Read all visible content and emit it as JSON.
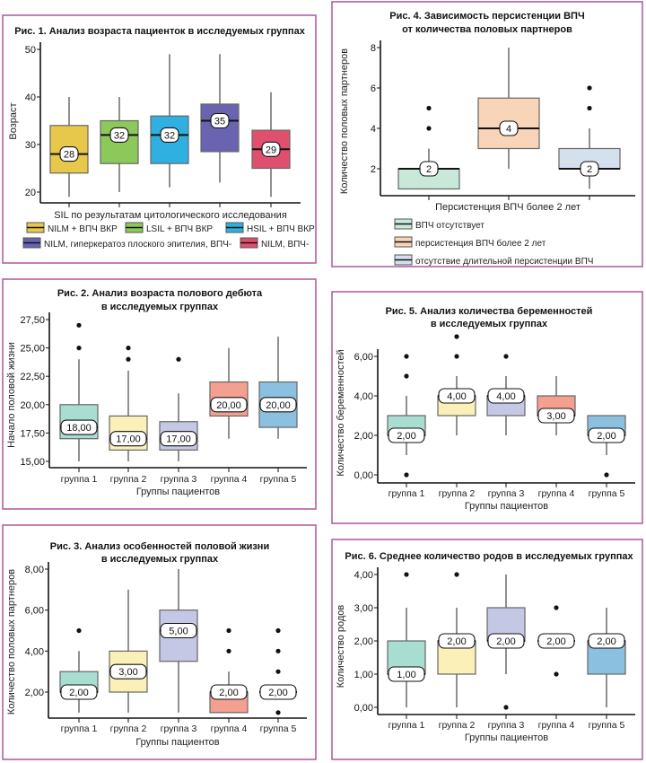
{
  "panel_border_color": "#b060a8",
  "chart_data": [
    {
      "type": "boxplot",
      "title": [
        "Рис. 1. Анализ возраста пациенток в исследуемых группах"
      ],
      "xlabel": "SIL по результатам цитологического исследования",
      "ylabel": "Возраст",
      "yticks": [
        20,
        30,
        40,
        50
      ],
      "ytick_labels": [
        "20",
        "30",
        "40",
        "50"
      ],
      "categories": [],
      "legend": [
        "NILM + ВПЧ ВКР",
        "LSIL + ВПЧ ВКР",
        "HSIL + ВПЧ ВКР",
        "NILM, гиперкератоз плоского эпителия, ВПЧ-",
        "NILM, ВПЧ-"
      ],
      "boxes": [
        {
          "low": 19,
          "q1": 24,
          "median": 28,
          "q3": 34,
          "high": 40,
          "outliers": [],
          "median_label": "28",
          "color": "#e8c84a"
        },
        {
          "low": 20,
          "q1": 26,
          "median": 32,
          "q3": 35,
          "high": 40,
          "outliers": [],
          "median_label": "32",
          "color": "#8cc95a"
        },
        {
          "low": 21,
          "q1": 26,
          "median": 32,
          "q3": 36,
          "high": 49,
          "outliers": [],
          "median_label": "32",
          "color": "#2fb0e0"
        },
        {
          "low": 22,
          "q1": 28.5,
          "median": 35,
          "q3": 38.5,
          "high": 49,
          "outliers": [],
          "median_label": "35",
          "color": "#6a64b0"
        },
        {
          "low": 19,
          "q1": 25,
          "median": 29,
          "q3": 33,
          "high": 41,
          "outliers": [],
          "median_label": "29",
          "color": "#e0506e"
        }
      ]
    },
    {
      "type": "boxplot",
      "title": [
        "Рис. 2. Анализ возраста полового дебюта",
        "в исследуемых группах"
      ],
      "xlabel": "Группы пациентов",
      "ylabel": "Начало половой жизни",
      "yticks": [
        15,
        17.5,
        20,
        22.5,
        25,
        27.5
      ],
      "ytick_labels": [
        "15,00",
        "17,50",
        "20,00",
        "22,50",
        "25,00",
        "27,50"
      ],
      "categories": [
        "группа 1",
        "группа 2",
        "группа 3",
        "группа 4",
        "группа 5"
      ],
      "legend": [],
      "boxes": [
        {
          "low": 15,
          "q1": 17,
          "median": 18,
          "q3": 20,
          "high": 24,
          "outliers": [
            25,
            27
          ],
          "median_label": "18,00",
          "color": "#a8ddd2"
        },
        {
          "low": 15,
          "q1": 16,
          "median": 17,
          "q3": 19,
          "high": 23,
          "outliers": [
            24,
            25
          ],
          "median_label": "17,00",
          "color": "#fbf0b8"
        },
        {
          "low": 15,
          "q1": 16,
          "median": 17,
          "q3": 18.5,
          "high": 21,
          "outliers": [
            24
          ],
          "median_label": "17,00",
          "color": "#c4c8e4"
        },
        {
          "low": 17,
          "q1": 19,
          "median": 20,
          "q3": 22,
          "high": 25,
          "outliers": [],
          "median_label": "20,00",
          "color": "#f4a090"
        },
        {
          "low": 17,
          "q1": 18,
          "median": 20,
          "q3": 22,
          "high": 26,
          "outliers": [],
          "median_label": "20,00",
          "color": "#8cc0e0"
        }
      ]
    },
    {
      "type": "boxplot",
      "title": [
        "Рис. 3. Анализ особенностей половой жизни",
        "в исследуемых группах"
      ],
      "xlabel": "Группы пациентов",
      "ylabel": "Количество половых партнеров",
      "yticks": [
        2,
        4,
        6,
        8
      ],
      "ytick_labels": [
        "2,00",
        "4,00",
        "6,00",
        "8,00"
      ],
      "categories": [
        "группа 1",
        "группа 2",
        "группа 3",
        "группа 4",
        "группа 5"
      ],
      "legend": [],
      "boxes": [
        {
          "low": 1,
          "q1": 2,
          "median": 2,
          "q3": 3,
          "high": 4,
          "outliers": [
            5
          ],
          "median_label": "2,00",
          "color": "#a8ddd2"
        },
        {
          "low": 1,
          "q1": 2,
          "median": 3,
          "q3": 4,
          "high": 7,
          "outliers": [],
          "median_label": "3,00",
          "color": "#fbf0b8"
        },
        {
          "low": 1,
          "q1": 3.5,
          "median": 5,
          "q3": 6,
          "high": 8,
          "outliers": [],
          "median_label": "5,00",
          "color": "#c4c8e4"
        },
        {
          "low": 1,
          "q1": 1,
          "median": 2,
          "q3": 2,
          "high": 3,
          "outliers": [
            4,
            5
          ],
          "median_label": "2,00",
          "color": "#f4a090"
        },
        {
          "low": 2,
          "q1": 2,
          "median": 2,
          "q3": 2,
          "high": 2,
          "outliers": [
            1,
            3,
            4,
            5
          ],
          "median_label": "2,00",
          "color": "#8cc0e0"
        }
      ]
    },
    {
      "type": "boxplot",
      "title": [
        "Рис. 4. Зависимость персистенции ВПЧ",
        "от количества половых партнеров"
      ],
      "xlabel": "Персистенция ВПЧ более 2 лет",
      "ylabel": "Количество половых партнеров",
      "yticks": [
        2,
        4,
        6,
        8
      ],
      "ytick_labels": [
        "2",
        "4",
        "6",
        "8"
      ],
      "categories": [],
      "legend": [
        "ВПЧ отсутствует",
        "персистенция ВПЧ более 2 лет",
        "отсутствие длительной персистенции ВПЧ"
      ],
      "boxes": [
        {
          "low": 1,
          "q1": 1,
          "median": 2,
          "q3": 2,
          "high": 3,
          "outliers": [
            4,
            5
          ],
          "median_label": "2",
          "color": "#c8e8da"
        },
        {
          "low": 2,
          "q1": 3,
          "median": 4,
          "q3": 5.5,
          "high": 8,
          "outliers": [],
          "median_label": "4",
          "color": "#f8d4b8"
        },
        {
          "low": 1,
          "q1": 2,
          "median": 2,
          "q3": 3,
          "high": 4,
          "outliers": [
            5,
            6
          ],
          "median_label": "2",
          "color": "#d4e0ee"
        }
      ]
    },
    {
      "type": "boxplot",
      "title": [
        "Рис. 5. Анализ количества беременностей",
        "в исследуемых группах"
      ],
      "xlabel": "Группы пациентов",
      "ylabel": "Количество беременностей",
      "yticks": [
        0,
        2,
        4,
        6
      ],
      "ytick_labels": [
        "0,00",
        "2,00",
        "4,00",
        "6,00"
      ],
      "categories": [
        "группа 1",
        "группа 2",
        "группа 3",
        "группа 4",
        "группа 5"
      ],
      "legend": [],
      "boxes": [
        {
          "low": 1,
          "q1": 2,
          "median": 2,
          "q3": 3,
          "high": 4,
          "outliers": [
            0,
            5,
            6
          ],
          "median_label": "2,00",
          "color": "#a8ddd2"
        },
        {
          "low": 2,
          "q1": 3,
          "median": 4,
          "q3": 4,
          "high": 5,
          "outliers": [
            6,
            7
          ],
          "median_label": "4,00",
          "color": "#fbf0b8"
        },
        {
          "low": 2,
          "q1": 3,
          "median": 4,
          "q3": 4,
          "high": 5,
          "outliers": [
            6
          ],
          "median_label": "4,00",
          "color": "#c4c8e4"
        },
        {
          "low": 2,
          "q1": 3,
          "median": 3,
          "q3": 4,
          "high": 5,
          "outliers": [],
          "median_label": "3,00",
          "color": "#f4a090"
        },
        {
          "low": 1,
          "q1": 2,
          "median": 2,
          "q3": 3,
          "high": 3,
          "outliers": [
            0
          ],
          "median_label": "2,00",
          "color": "#8cc0e0"
        }
      ]
    },
    {
      "type": "boxplot",
      "title": [
        "Рис. 6. Среднее количество родов в исследуемых группах"
      ],
      "xlabel": "Группы пациентов",
      "ylabel": "Количество родов",
      "yticks": [
        0,
        1,
        2,
        3,
        4
      ],
      "ytick_labels": [
        "0,00",
        "1,00",
        "2,00",
        "3,00",
        "4,00"
      ],
      "categories": [
        "группа 1",
        "группа 2",
        "группа 3",
        "группа 4",
        "группа 5"
      ],
      "legend": [],
      "boxes": [
        {
          "low": 0,
          "q1": 1,
          "median": 1,
          "q3": 2,
          "high": 3,
          "outliers": [
            4
          ],
          "median_label": "1,00",
          "color": "#a8ddd2"
        },
        {
          "low": 0,
          "q1": 1,
          "median": 2,
          "q3": 2,
          "high": 3,
          "outliers": [
            4
          ],
          "median_label": "2,00",
          "color": "#fbf0b8"
        },
        {
          "low": 1,
          "q1": 2,
          "median": 2,
          "q3": 3,
          "high": 4,
          "outliers": [
            0
          ],
          "median_label": "2,00",
          "color": "#c4c8e4"
        },
        {
          "low": 2,
          "q1": 2,
          "median": 2,
          "q3": 2,
          "high": 2,
          "outliers": [
            1,
            3
          ],
          "median_label": "2,00",
          "color": "#f4a090"
        },
        {
          "low": 0,
          "q1": 1,
          "median": 2,
          "q3": 2,
          "high": 3,
          "outliers": [],
          "median_label": "2,00",
          "color": "#8cc0e0"
        }
      ]
    }
  ]
}
